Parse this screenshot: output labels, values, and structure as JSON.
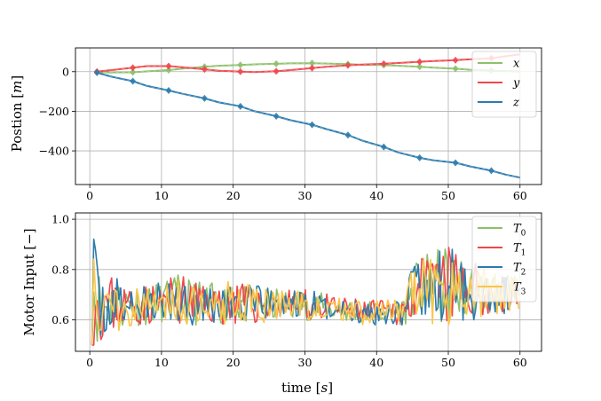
{
  "chart_data": [
    {
      "type": "line",
      "ylabel": "Postion [m]",
      "ylabel_prefix": "Postion [",
      "ylabel_unit": "m",
      "ylabel_suffix": "]",
      "xlim": [
        -2,
        63
      ],
      "ylim": [
        -570,
        120
      ],
      "x_ticks": [
        0,
        10,
        20,
        30,
        40,
        50,
        60
      ],
      "y_ticks": [
        0,
        -200,
        -400
      ],
      "y_tick_labels": [
        "0",
        "−200",
        "−400"
      ],
      "x_tick_labels": [
        "0",
        "10",
        "20",
        "30",
        "40",
        "50",
        "60"
      ],
      "grid": true,
      "legend_position": "top-right",
      "marker_x": [
        1,
        6,
        11,
        16,
        21,
        26,
        31,
        36,
        41,
        46,
        51,
        56
      ],
      "series": [
        {
          "name": "x",
          "color": "#8cc06a",
          "x": [
            1,
            3,
            6,
            9,
            11,
            13,
            16,
            18,
            21,
            23,
            26,
            28,
            31,
            33,
            36,
            38,
            41,
            43,
            46,
            48,
            51,
            53,
            56,
            58,
            60
          ],
          "values": [
            -2,
            -4,
            -3,
            4,
            8,
            16,
            25,
            30,
            34,
            37,
            40,
            42,
            43,
            41,
            38,
            35,
            33,
            30,
            25,
            20,
            15,
            10,
            6,
            3,
            1
          ]
        },
        {
          "name": "y",
          "color": "#f0464b",
          "x": [
            1,
            3,
            6,
            8,
            11,
            13,
            16,
            18,
            21,
            23,
            26,
            28,
            31,
            33,
            36,
            38,
            41,
            43,
            46,
            48,
            51,
            53,
            56,
            58,
            60
          ],
          "values": [
            0,
            8,
            20,
            28,
            28,
            22,
            12,
            5,
            0,
            -2,
            2,
            8,
            18,
            25,
            32,
            36,
            40,
            44,
            50,
            54,
            58,
            62,
            68,
            78,
            88
          ]
        },
        {
          "name": "z",
          "color": "#2b7bad",
          "x": [
            1,
            3,
            6,
            8,
            11,
            13,
            16,
            18,
            21,
            23,
            26,
            28,
            31,
            33,
            36,
            38,
            41,
            43,
            46,
            48,
            51,
            53,
            56,
            58,
            60
          ],
          "values": [
            -5,
            -25,
            -48,
            -72,
            -95,
            -112,
            -135,
            -155,
            -175,
            -200,
            -225,
            -245,
            -268,
            -290,
            -320,
            -348,
            -380,
            -408,
            -435,
            -448,
            -460,
            -478,
            -500,
            -520,
            -535
          ]
        }
      ]
    },
    {
      "type": "line",
      "xlabel": "time [s]",
      "xlabel_prefix": "time [",
      "xlabel_unit": "s",
      "xlabel_suffix": "]",
      "ylabel": "Motor Input [−]",
      "xlim": [
        -2,
        63
      ],
      "ylim": [
        0.475,
        1.025
      ],
      "x_ticks": [
        0,
        10,
        20,
        30,
        40,
        50,
        60
      ],
      "x_tick_labels": [
        "0",
        "10",
        "20",
        "30",
        "40",
        "50",
        "60"
      ],
      "y_ticks": [
        0.6,
        0.8,
        1.0
      ],
      "y_tick_labels": [
        "0.6",
        "0.8",
        "1.0"
      ],
      "grid": true,
      "legend_position": "top-right",
      "x_start": 0.3,
      "x_end": 60,
      "x_step": 0.25,
      "envelope": {
        "x": [
          0.3,
          1,
          3,
          5,
          8,
          10,
          12,
          15,
          18,
          20,
          22,
          25,
          28,
          30,
          32,
          35,
          38,
          40,
          42,
          44,
          45,
          47,
          50,
          52,
          55,
          58,
          60
        ],
        "mean": [
          0.78,
          0.66,
          0.66,
          0.66,
          0.66,
          0.67,
          0.68,
          0.67,
          0.66,
          0.67,
          0.66,
          0.66,
          0.66,
          0.66,
          0.65,
          0.64,
          0.63,
          0.63,
          0.63,
          0.64,
          0.72,
          0.72,
          0.73,
          0.72,
          0.71,
          0.7,
          0.7
        ],
        "amp": [
          0.3,
          0.16,
          0.12,
          0.09,
          0.08,
          0.08,
          0.1,
          0.09,
          0.08,
          0.09,
          0.08,
          0.07,
          0.06,
          0.06,
          0.06,
          0.05,
          0.05,
          0.05,
          0.05,
          0.06,
          0.1,
          0.14,
          0.17,
          0.13,
          0.1,
          0.08,
          0.07
        ]
      },
      "series": [
        {
          "name": "T0",
          "name_base": "T",
          "name_sub": "0",
          "color": "#8cc06a",
          "seed": 11
        },
        {
          "name": "T1",
          "name_base": "T",
          "name_sub": "1",
          "color": "#f0464b",
          "seed": 23
        },
        {
          "name": "T2",
          "name_base": "T",
          "name_sub": "2",
          "color": "#2b7bad",
          "seed": 37
        },
        {
          "name": "T3",
          "name_base": "T",
          "name_sub": "3",
          "color": "#fbc548",
          "seed": 51
        }
      ]
    }
  ]
}
